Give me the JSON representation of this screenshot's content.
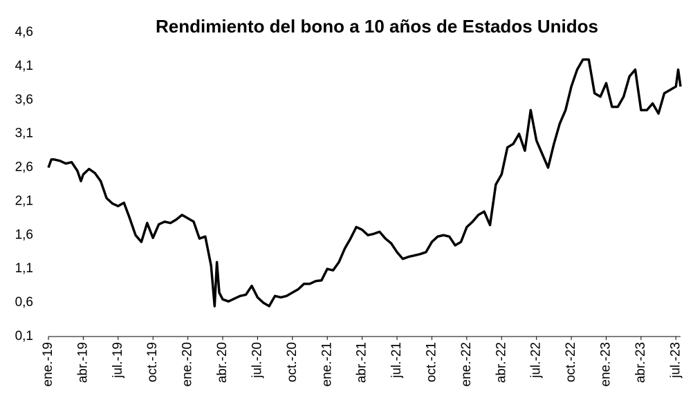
{
  "chart_data": {
    "type": "line",
    "title": "Rendimiento del bono a 10 años de Estados Unidos",
    "x": [
      0,
      0.25,
      0.5,
      1,
      1.5,
      2,
      2.5,
      2.8,
      3,
      3.5,
      4,
      4.5,
      5,
      5.5,
      6,
      6.5,
      7,
      7.5,
      8,
      8.5,
      9,
      9.5,
      10,
      10.5,
      11,
      11.5,
      12,
      12.5,
      13,
      13.5,
      14,
      14.3,
      14.5,
      14.7,
      15,
      15.5,
      16,
      16.5,
      17,
      17.5,
      18,
      18.5,
      19,
      19.5,
      20,
      20.5,
      21,
      21.5,
      22,
      22.5,
      23,
      23.5,
      24,
      24.5,
      25,
      25.5,
      26,
      26.5,
      27,
      27.5,
      28,
      28.5,
      29,
      29.5,
      30,
      30.5,
      31,
      31.5,
      32,
      32.5,
      33,
      33.5,
      34,
      34.5,
      35,
      35.5,
      36,
      36.5,
      37,
      37.5,
      38,
      38.5,
      39,
      39.5,
      40,
      40.5,
      41,
      41.5,
      42,
      42.5,
      43,
      43.5,
      44,
      44.5,
      45,
      45.5,
      46,
      46.5,
      47,
      47.5,
      48,
      48.5,
      49,
      49.5,
      50,
      50.5,
      51,
      51.5,
      52,
      52.5,
      53,
      53.5,
      54,
      54.2,
      54.4
    ],
    "series": [
      {
        "color": "#000000",
        "values": [
          2.6,
          2.72,
          2.72,
          2.7,
          2.66,
          2.68,
          2.55,
          2.4,
          2.5,
          2.58,
          2.52,
          2.4,
          2.15,
          2.07,
          2.03,
          2.08,
          1.85,
          1.6,
          1.5,
          1.78,
          1.56,
          1.76,
          1.8,
          1.78,
          1.83,
          1.9,
          1.85,
          1.8,
          1.55,
          1.58,
          1.15,
          0.55,
          1.2,
          0.75,
          0.65,
          0.62,
          0.66,
          0.7,
          0.72,
          0.85,
          0.68,
          0.6,
          0.55,
          0.7,
          0.68,
          0.7,
          0.75,
          0.8,
          0.88,
          0.88,
          0.92,
          0.93,
          1.1,
          1.08,
          1.2,
          1.4,
          1.55,
          1.72,
          1.68,
          1.6,
          1.62,
          1.65,
          1.55,
          1.48,
          1.35,
          1.25,
          1.28,
          1.3,
          1.32,
          1.35,
          1.5,
          1.58,
          1.6,
          1.58,
          1.45,
          1.5,
          1.72,
          1.8,
          1.9,
          1.95,
          1.75,
          2.35,
          2.5,
          2.9,
          2.95,
          3.1,
          2.85,
          3.45,
          3.0,
          2.8,
          2.6,
          2.95,
          3.25,
          3.45,
          3.8,
          4.05,
          4.2,
          4.2,
          3.7,
          3.65,
          3.85,
          3.5,
          3.5,
          3.65,
          3.95,
          4.05,
          3.45,
          3.45,
          3.55,
          3.4,
          3.7,
          3.75,
          3.8,
          4.05,
          3.8
        ]
      }
    ],
    "xlim": [
      0,
      54.4
    ],
    "xticks": [
      {
        "value": 0,
        "label": "ene.-19"
      },
      {
        "value": 3,
        "label": "abr.-19"
      },
      {
        "value": 6,
        "label": "jul.-19"
      },
      {
        "value": 9,
        "label": "oct.-19"
      },
      {
        "value": 12,
        "label": "ene.-20"
      },
      {
        "value": 15,
        "label": "abr.-20"
      },
      {
        "value": 18,
        "label": "jul.-20"
      },
      {
        "value": 21,
        "label": "oct.-20"
      },
      {
        "value": 24,
        "label": "ene.-21"
      },
      {
        "value": 27,
        "label": "abr.-21"
      },
      {
        "value": 30,
        "label": "jul.-21"
      },
      {
        "value": 33,
        "label": "oct.-21"
      },
      {
        "value": 36,
        "label": "ene.-22"
      },
      {
        "value": 39,
        "label": "abr.-22"
      },
      {
        "value": 42,
        "label": "jul.-22"
      },
      {
        "value": 45,
        "label": "oct.-22"
      },
      {
        "value": 48,
        "label": "ene.-23"
      },
      {
        "value": 51,
        "label": "abr.-23"
      },
      {
        "value": 54,
        "label": "jul.-23"
      }
    ],
    "ylim": [
      0.1,
      4.6
    ],
    "yticks": [
      {
        "value": 0.1,
        "label": "0,1"
      },
      {
        "value": 0.6,
        "label": "0,6"
      },
      {
        "value": 1.1,
        "label": "1,1"
      },
      {
        "value": 1.6,
        "label": "1,6"
      },
      {
        "value": 2.1,
        "label": "2,1"
      },
      {
        "value": 2.6,
        "label": "2,6"
      },
      {
        "value": 3.1,
        "label": "3,1"
      },
      {
        "value": 3.6,
        "label": "3,6"
      },
      {
        "value": 4.1,
        "label": "4,1"
      },
      {
        "value": 4.6,
        "label": "4,6"
      }
    ]
  }
}
